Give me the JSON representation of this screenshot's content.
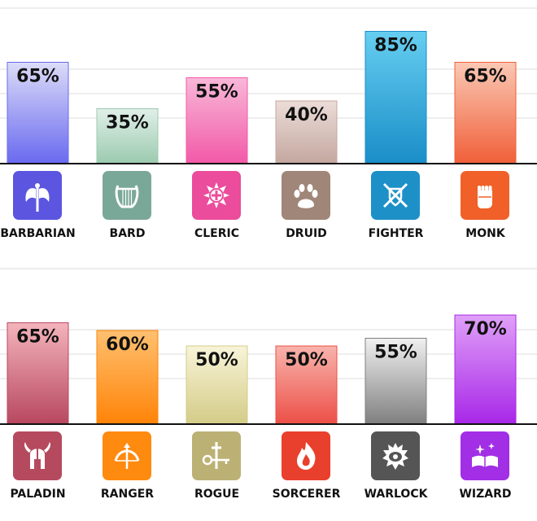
{
  "chart_data": [
    {
      "type": "bar",
      "categories": [
        "BARBARIAN",
        "BARD",
        "CLERIC",
        "DRUID",
        "FIGHTER",
        "MONK"
      ],
      "values": [
        65,
        35,
        55,
        40,
        85,
        65
      ],
      "labels": [
        "65%",
        "35%",
        "55%",
        "40%",
        "85%",
        "65%"
      ],
      "ylim": [
        0,
        100
      ],
      "grid": true,
      "colors": [
        {
          "top": "#dcdcf8",
          "bottom": "#6a6af0",
          "icon": "#5b55e0"
        },
        {
          "top": "#e0efe8",
          "bottom": "#9ccbb0",
          "icon": "#7aa898"
        },
        {
          "top": "#f8b8d8",
          "bottom": "#f25aa8",
          "icon": "#ec4c9c"
        },
        {
          "top": "#ecdcd8",
          "bottom": "#c4a8a0",
          "icon": "#a08678"
        },
        {
          "top": "#66cef0",
          "bottom": "#1a8ec8",
          "icon": "#1e90c8"
        },
        {
          "top": "#fac8b4",
          "bottom": "#f0603a",
          "icon": "#f06028"
        }
      ],
      "icons": [
        "double-axe-icon",
        "lyre-icon",
        "holy-symbol-icon",
        "paw-icon",
        "crossed-swords-shield-icon",
        "fist-icon"
      ]
    },
    {
      "type": "bar",
      "categories": [
        "PALADIN",
        "RANGER",
        "ROGUE",
        "SORCERER",
        "WARLOCK",
        "WIZARD"
      ],
      "values": [
        65,
        60,
        50,
        50,
        55,
        70
      ],
      "labels": [
        "65%",
        "60%",
        "50%",
        "50%",
        "55%",
        "70%"
      ],
      "ylim": [
        0,
        100
      ],
      "grid": true,
      "colors": [
        {
          "top": "#f4b4bc",
          "bottom": "#b84860",
          "icon": "#b54a5e"
        },
        {
          "top": "#ffc070",
          "bottom": "#ff8408",
          "icon": "#ff8a10"
        },
        {
          "top": "#f8f4d8",
          "bottom": "#d4cc88",
          "icon": "#bcb174"
        },
        {
          "top": "#f8b4ac",
          "bottom": "#ec5048",
          "icon": "#e8402c"
        },
        {
          "top": "#f0f0f0",
          "bottom": "#808080",
          "icon": "#555555"
        },
        {
          "top": "#e0a0f8",
          "bottom": "#a828e8",
          "icon": "#a22ee6"
        }
      ],
      "icons": [
        "winged-helmet-icon",
        "bow-arrow-icon",
        "dagger-key-icon",
        "flame-icon",
        "eye-sun-icon",
        "spellbook-icon"
      ]
    }
  ]
}
